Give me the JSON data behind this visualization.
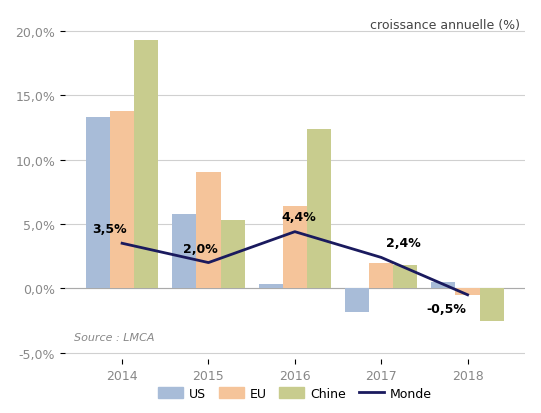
{
  "years": [
    2014,
    2015,
    2016,
    2017,
    2018
  ],
  "US": [
    13.3,
    5.8,
    0.3,
    -1.8,
    0.5
  ],
  "EU": [
    13.8,
    9.0,
    6.4,
    2.0,
    -0.5
  ],
  "Chine": [
    19.3,
    5.3,
    12.4,
    1.8,
    -2.5
  ],
  "Monde": [
    3.5,
    2.0,
    4.4,
    2.4,
    -0.5
  ],
  "monde_labels": [
    "3,5%",
    "2,0%",
    "4,4%",
    "2,4%",
    "-0,5%"
  ],
  "color_US": "#a8bcd8",
  "color_EU": "#f5c49a",
  "color_Chine": "#c8cc8e",
  "color_Monde": "#1a1a5e",
  "bar_width": 0.28,
  "ylim": [
    -5.5,
    21.5
  ],
  "yticks": [
    -5.0,
    0.0,
    5.0,
    10.0,
    15.0,
    20.0
  ],
  "ytick_labels": [
    "-5,0%",
    "0,0%",
    "5,0%",
    "10,0%",
    "15,0%",
    "20,0%"
  ],
  "annotation_text": "croissance annuelle (%)",
  "source_text": "Source : LMCA",
  "background_color": "#ffffff",
  "grid_color": "#d0d0d0"
}
